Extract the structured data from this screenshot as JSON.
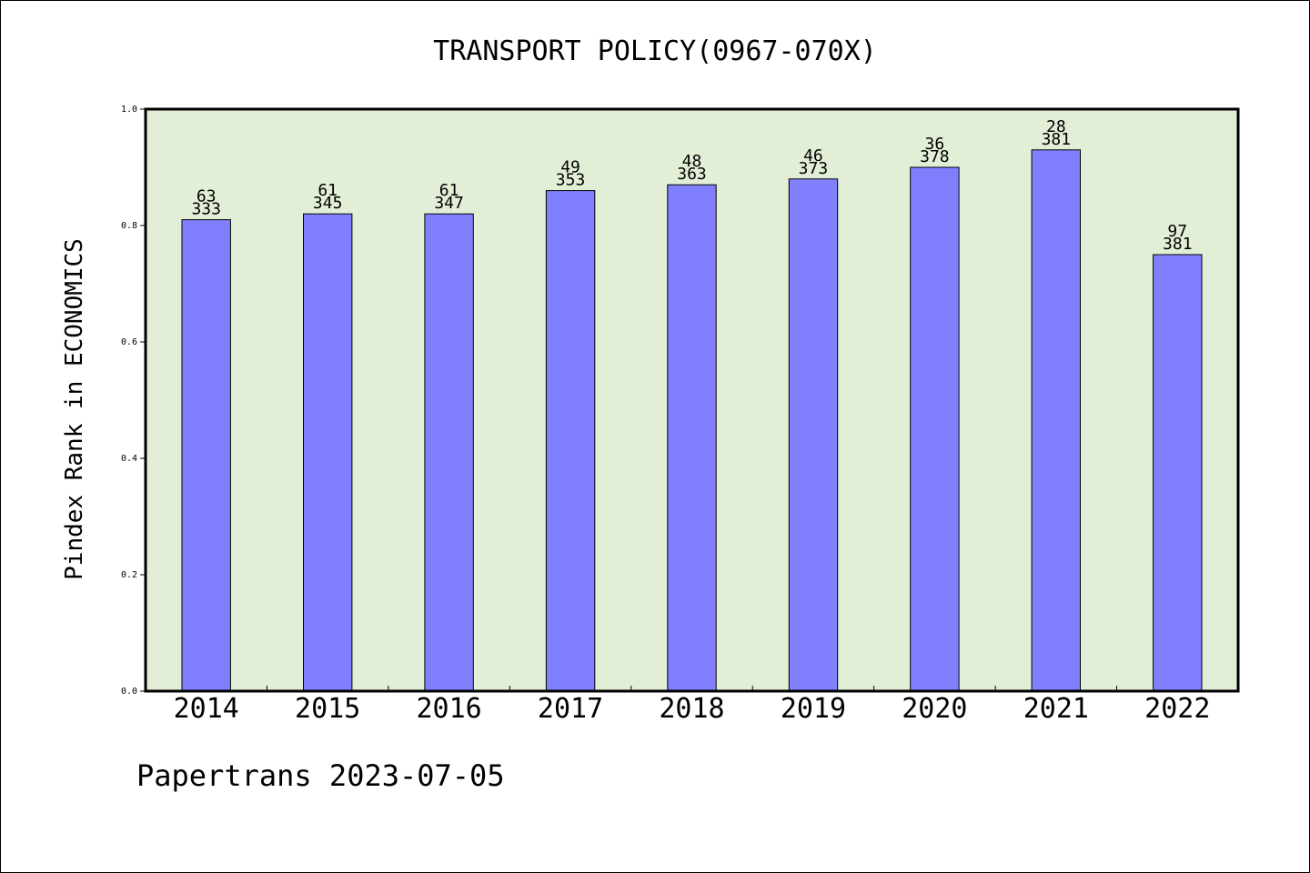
{
  "chart_data": {
    "type": "bar",
    "title": "TRANSPORT POLICY(0967-070X)",
    "xlabel": "",
    "ylabel": "Pindex Rank in ECONOMICS",
    "categories": [
      "2014",
      "2015",
      "2016",
      "2017",
      "2018",
      "2019",
      "2020",
      "2021",
      "2022"
    ],
    "values": [
      0.81,
      0.82,
      0.82,
      0.86,
      0.87,
      0.88,
      0.9,
      0.93,
      0.75
    ],
    "bar_labels_rank": [
      "63",
      "61",
      "61",
      "49",
      "48",
      "46",
      "36",
      "28",
      "97"
    ],
    "bar_labels_total": [
      "333",
      "345",
      "347",
      "353",
      "363",
      "373",
      "378",
      "381",
      "381"
    ],
    "ylim": [
      0,
      1
    ],
    "yticks": [
      "0.0",
      "0.2",
      "0.4",
      "0.6",
      "0.8",
      "1.0"
    ],
    "grid": false,
    "colors": {
      "plot_background": "#e2efd6",
      "bar_fill": "#8080ff",
      "bar_stroke": "#000000",
      "axis": "#000000"
    }
  },
  "footer": {
    "source": "Papertrans 2023-07-05"
  }
}
